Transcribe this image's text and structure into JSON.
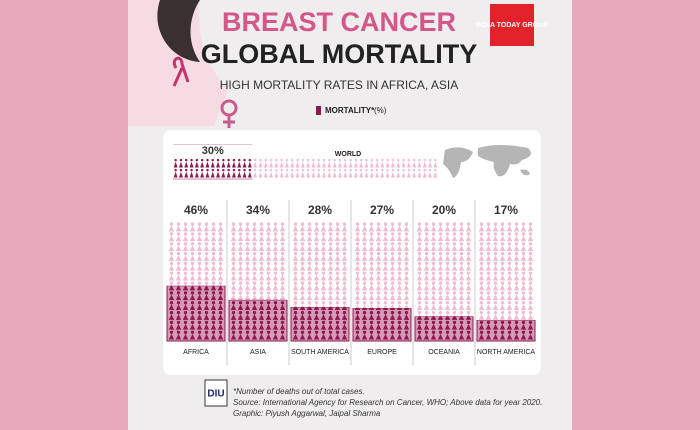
{
  "logo": "INDIA TODAY GROUP",
  "chart_data": [
    {
      "type": "pictogram",
      "orientation": "horizontal",
      "title": [
        "BREAST CANCER",
        "GLOBAL MORTALITY"
      ],
      "subtitle": "HIGH MORTALITY RATES IN AFRICA, ASIA",
      "legend": {
        "label": "MORTALITY*",
        "unit": "(%)"
      },
      "categories": [
        "WORLD"
      ],
      "values": [
        30
      ],
      "value_labels": [
        "30%"
      ],
      "color": "#8b1a4f",
      "ylim": [
        0,
        100
      ]
    },
    {
      "type": "pictogram",
      "orientation": "vertical",
      "categories": [
        "AFRICA",
        "ASIA",
        "SOUTH AMERICA",
        "EUROPE",
        "OCEANIA",
        "NORTH AMERICA"
      ],
      "values": [
        46,
        34,
        28,
        27,
        20,
        17
      ],
      "value_labels": [
        "46%",
        "34%",
        "28%",
        "27%",
        "20%",
        "17%"
      ],
      "color": "#8b1a4f",
      "ylim": [
        0,
        100
      ]
    }
  ],
  "footer": {
    "logo": "DIU",
    "notes": [
      "*Number of deaths out of total cases.",
      "Source: International Agency for Research on Cancer, WHO; Above data for year 2020.",
      "Graphic: Piyush Aggarwal, Jaipal Sharma"
    ]
  }
}
